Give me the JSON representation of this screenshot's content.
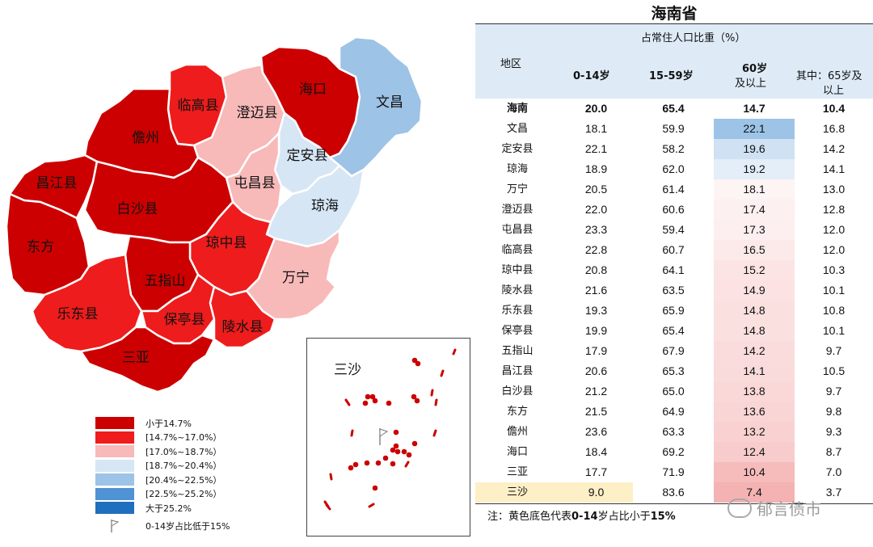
{
  "map": {
    "regions": [
      {
        "name": "海口",
        "value": 12.4,
        "color": "#cc0000"
      },
      {
        "name": "文昌",
        "value": 22.1,
        "color": "#9dc3e6"
      },
      {
        "name": "临高县",
        "value": 16.5,
        "color": "#ee1c1c"
      },
      {
        "name": "澄迈县",
        "value": 17.4,
        "color": "#f8b9b9"
      },
      {
        "name": "儋州",
        "value": 13.2,
        "color": "#cc0000"
      },
      {
        "name": "定安县",
        "value": 19.6,
        "color": "#d6e6f5"
      },
      {
        "name": "屯昌县",
        "value": 17.3,
        "color": "#f8b9b9"
      },
      {
        "name": "昌江县",
        "value": 14.1,
        "color": "#cc0000"
      },
      {
        "name": "白沙县",
        "value": 13.8,
        "color": "#cc0000"
      },
      {
        "name": "琼海",
        "value": 19.2,
        "color": "#d6e6f5"
      },
      {
        "name": "东方",
        "value": 13.6,
        "color": "#cc0000"
      },
      {
        "name": "琼中县",
        "value": 15.2,
        "color": "#ee1c1c"
      },
      {
        "name": "万宁",
        "value": 18.1,
        "color": "#f8b9b9"
      },
      {
        "name": "五指山",
        "value": 14.2,
        "color": "#cc0000"
      },
      {
        "name": "乐东县",
        "value": 14.8,
        "color": "#ee1c1c"
      },
      {
        "name": "保亭县",
        "value": 14.8,
        "color": "#ee1c1c"
      },
      {
        "name": "陵水县",
        "value": 14.9,
        "color": "#ee1c1c"
      },
      {
        "name": "三亚",
        "value": 10.4,
        "color": "#cc0000"
      }
    ],
    "inset_title": "三沙"
  },
  "legend": {
    "items": [
      {
        "label": "小于14.7%",
        "color": "#cc0000"
      },
      {
        "label": "[14.7%~17.0%）",
        "color": "#ee1c1c"
      },
      {
        "label": "[17.0%~18.7%）",
        "color": "#f8b9b9"
      },
      {
        "label": "[18.7%~20.4%）",
        "color": "#d6e6f5"
      },
      {
        "label": "[20.4%~22.5%）",
        "color": "#9dc3e6"
      },
      {
        "label": "[22.5%~25.2%）",
        "color": "#4f92d6"
      },
      {
        "label": "大于25.2%",
        "color": "#1f6fbf"
      }
    ],
    "flag_label": "0-14岁占比低于15%"
  },
  "table": {
    "title": "海南省",
    "group_header": "占常住人口比重（%）",
    "col_region": "地区",
    "col_0_14": "0-14岁",
    "col_15_59": "15-59岁",
    "col_60_a": "60岁",
    "col_60_b": "及以上",
    "col_65_a": "其中：65岁及",
    "col_65_b": "以上",
    "note_prefix": "注：黄色底色代表",
    "note_bold1": "0-14",
    "note_mid": "岁占比小于",
    "note_bold2": "15%"
  },
  "chart_data": {
    "type": "table",
    "title": "海南省",
    "columns": [
      "地区",
      "0-14岁",
      "15-59岁",
      "60岁及以上",
      "其中：65岁及以上"
    ],
    "rows": [
      {
        "name": "海南",
        "a": "20.0",
        "b": "65.4",
        "c": "14.7",
        "d": "10.4",
        "bg60": "#ffffff",
        "bg014": "#ffffff"
      },
      {
        "name": "文昌",
        "a": "18.1",
        "b": "59.9",
        "c": "22.1",
        "d": "16.8",
        "bg60": "#9dc3e6",
        "bg014": "#ffffff"
      },
      {
        "name": "定安县",
        "a": "22.1",
        "b": "58.2",
        "c": "19.6",
        "d": "14.2",
        "bg60": "#cfe1f3",
        "bg014": "#ffffff"
      },
      {
        "name": "琼海",
        "a": "18.9",
        "b": "62.0",
        "c": "19.2",
        "d": "14.1",
        "bg60": "#e3eef8",
        "bg014": "#ffffff"
      },
      {
        "name": "万宁",
        "a": "20.5",
        "b": "61.4",
        "c": "18.1",
        "d": "13.0",
        "bg60": "#fdf4f4",
        "bg014": "#ffffff"
      },
      {
        "name": "澄迈县",
        "a": "22.0",
        "b": "60.6",
        "c": "17.4",
        "d": "12.8",
        "bg60": "#fdf0f0",
        "bg014": "#ffffff"
      },
      {
        "name": "屯昌县",
        "a": "23.3",
        "b": "59.4",
        "c": "17.3",
        "d": "12.0",
        "bg60": "#fdefef",
        "bg014": "#ffffff"
      },
      {
        "name": "临高县",
        "a": "22.8",
        "b": "60.7",
        "c": "16.5",
        "d": "12.0",
        "bg60": "#fce9e9",
        "bg014": "#ffffff"
      },
      {
        "name": "琼中县",
        "a": "20.8",
        "b": "64.1",
        "c": "15.2",
        "d": "10.3",
        "bg60": "#fce4e4",
        "bg014": "#ffffff"
      },
      {
        "name": "陵水县",
        "a": "21.6",
        "b": "63.5",
        "c": "14.9",
        "d": "10.1",
        "bg60": "#fce2e2",
        "bg014": "#ffffff"
      },
      {
        "name": "乐东县",
        "a": "19.3",
        "b": "65.9",
        "c": "14.8",
        "d": "10.8",
        "bg60": "#fbe0e0",
        "bg014": "#ffffff"
      },
      {
        "name": "保亭县",
        "a": "19.9",
        "b": "65.4",
        "c": "14.8",
        "d": "10.1",
        "bg60": "#fbe0e0",
        "bg014": "#ffffff"
      },
      {
        "name": "五指山",
        "a": "17.9",
        "b": "67.9",
        "c": "14.2",
        "d": "9.7",
        "bg60": "#fbdcdc",
        "bg014": "#ffffff"
      },
      {
        "name": "昌江县",
        "a": "20.6",
        "b": "65.3",
        "c": "14.1",
        "d": "10.5",
        "bg60": "#fadbdb",
        "bg014": "#ffffff"
      },
      {
        "name": "白沙县",
        "a": "21.2",
        "b": "65.0",
        "c": "13.8",
        "d": "9.7",
        "bg60": "#fad8d8",
        "bg014": "#ffffff"
      },
      {
        "name": "东方",
        "a": "21.5",
        "b": "64.9",
        "c": "13.6",
        "d": "9.8",
        "bg60": "#f9d5d5",
        "bg014": "#ffffff"
      },
      {
        "name": "儋州",
        "a": "23.6",
        "b": "63.3",
        "c": "13.2",
        "d": "9.3",
        "bg60": "#f9d1d1",
        "bg014": "#ffffff"
      },
      {
        "name": "海口",
        "a": "18.4",
        "b": "69.2",
        "c": "12.4",
        "d": "8.7",
        "bg60": "#f8cccc",
        "bg014": "#ffffff"
      },
      {
        "name": "三亚",
        "a": "17.7",
        "b": "71.9",
        "c": "10.4",
        "d": "7.0",
        "bg60": "#f6bcbc",
        "bg014": "#ffffff"
      },
      {
        "name": "三沙",
        "a": "9.0",
        "b": "83.6",
        "c": "7.4",
        "d": "3.7",
        "bg60": "#f4b2b2",
        "bg014": "#fdefc6"
      }
    ]
  },
  "watermark": "郁言债市"
}
